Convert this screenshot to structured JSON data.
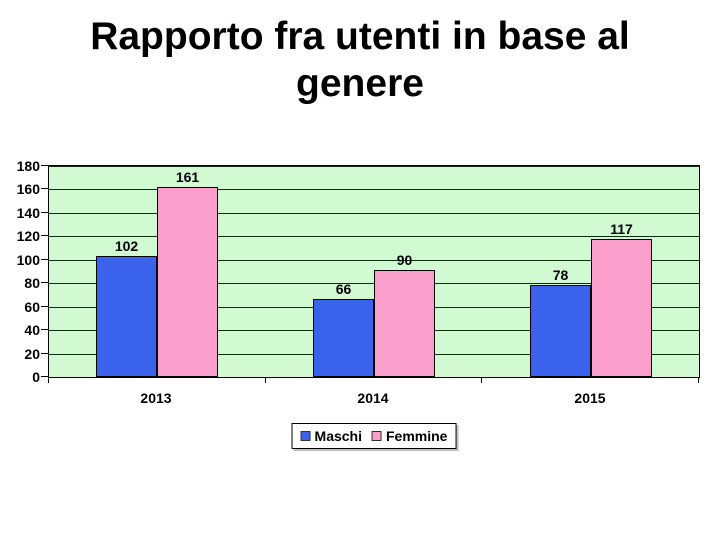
{
  "slide": {
    "title_line1": "Rapporto fra utenti in base al",
    "title_line2": "genere"
  },
  "chart_data": {
    "type": "bar",
    "title": "Rapporto fra utenti in base al genere",
    "categories": [
      "2013",
      "2014",
      "2015"
    ],
    "series": [
      {
        "name": "Maschi",
        "color": "#3A62EC",
        "values": [
          102,
          66,
          78
        ]
      },
      {
        "name": "Femmine",
        "color": "#FA9ECB",
        "values": [
          161,
          90,
          117
        ]
      }
    ],
    "xlabel": "",
    "ylabel": "",
    "ylim": [
      0,
      180
    ],
    "ytick_step": 20,
    "ytick_labels": [
      "0",
      "20",
      "40",
      "60",
      "80",
      "100",
      "120",
      "140",
      "160",
      "180"
    ],
    "grid": true,
    "data_labels": true,
    "legend_position": "bottom",
    "plot_bg_color": "#D2FAD2",
    "gridline_color": "#0A300A",
    "axis_color": "#000000"
  },
  "legend": {
    "items": [
      {
        "label": "Maschi",
        "color": "#3A62EC"
      },
      {
        "label": "Femmine",
        "color": "#FA9ECB"
      }
    ]
  }
}
